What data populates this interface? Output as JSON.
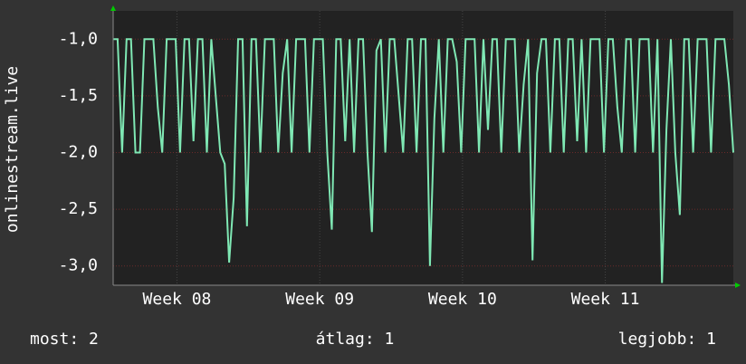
{
  "chart_data": {
    "type": "line",
    "ylabel": "onlinestream.live",
    "values": [
      -1,
      -1,
      -2,
      -1,
      -1,
      -2,
      -2,
      -1,
      -1,
      -1,
      -1.6,
      -2,
      -1,
      -1,
      -1,
      -2,
      -1,
      -1,
      -1.9,
      -1,
      -1,
      -2,
      -1,
      -1.5,
      -2,
      -2.1,
      -2.97,
      -2.4,
      -1,
      -1,
      -2.65,
      -1,
      -1,
      -2,
      -1,
      -1,
      -1,
      -2,
      -1.3,
      -1,
      -2,
      -1,
      -1,
      -1,
      -2,
      -1,
      -1,
      -1,
      -2,
      -2.68,
      -1,
      -1,
      -1.9,
      -1,
      -2,
      -1,
      -1,
      -2,
      -2.7,
      -1.1,
      -1,
      -2,
      -1,
      -1,
      -1.5,
      -2,
      -1,
      -1,
      -2,
      -1,
      -1,
      -3.0,
      -1.7,
      -1,
      -2,
      -1,
      -1,
      -1.2,
      -2,
      -1,
      -1,
      -1,
      -2,
      -1,
      -1.8,
      -1,
      -1,
      -2,
      -1,
      -1,
      -1,
      -2,
      -1.4,
      -1,
      -2.95,
      -1.3,
      -1,
      -1,
      -2,
      -1,
      -1,
      -2,
      -1,
      -1,
      -1.9,
      -1,
      -2,
      -1,
      -1,
      -1,
      -2,
      -1,
      -1,
      -1.6,
      -2,
      -1,
      -1,
      -2,
      -1,
      -1,
      -1,
      -2,
      -1,
      -3.15,
      -1.8,
      -1,
      -2,
      -2.55,
      -1,
      -1,
      -2,
      -1,
      -1,
      -1,
      -2,
      -1,
      -1,
      -1,
      -1.4,
      -2
    ],
    "color": "#7fe8b4",
    "xlim": [
      0,
      139
    ],
    "xticks": [
      {
        "value": 14.3,
        "label": "Week 08"
      },
      {
        "value": 46.3,
        "label": "Week 09"
      },
      {
        "value": 78.3,
        "label": "Week 10"
      },
      {
        "value": 110.3,
        "label": "Week 11"
      }
    ],
    "ylim": [
      -3.17,
      -0.75
    ],
    "yticks": [
      {
        "value": -1,
        "label": "-1,0"
      },
      {
        "value": -1.5,
        "label": "-1,5"
      },
      {
        "value": -2,
        "label": "-2,0"
      },
      {
        "value": -2.5,
        "label": "-2,5"
      },
      {
        "value": -3,
        "label": "-3,0"
      }
    ],
    "grid": true,
    "stats": [
      "most: 2",
      "átlag: 1",
      "legjobb: 1"
    ]
  }
}
